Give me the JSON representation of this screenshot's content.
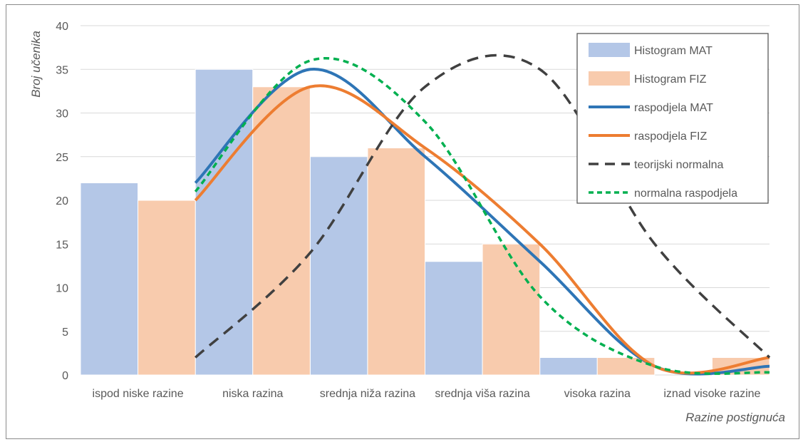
{
  "chart_data": {
    "type": "bar",
    "title": "",
    "xlabel": "Razine postignuća",
    "ylabel": "Broj učenika",
    "ylim": [
      0,
      40
    ],
    "yticks": [
      0,
      5,
      10,
      15,
      20,
      25,
      30,
      35,
      40
    ],
    "categories": [
      "ispod niske razine",
      "niska razina",
      "srednja niža razina",
      "srednja viša razina",
      "visoka razina",
      "iznad visoke razine"
    ],
    "grid": "horizontal",
    "legend_position": "top-right",
    "series": [
      {
        "name": "Histogram MAT",
        "kind": "bar",
        "color": "#b4c7e7",
        "values": [
          22,
          35,
          25,
          13,
          2,
          0
        ]
      },
      {
        "name": "Histogram FIZ",
        "kind": "bar",
        "color": "#f8cbad",
        "values": [
          20,
          33,
          26,
          15,
          2,
          2
        ]
      },
      {
        "name": "raspodjela MAT",
        "kind": "line",
        "style": "solid",
        "color": "#2e75b6",
        "values": [
          22,
          35,
          25,
          13,
          1,
          1
        ]
      },
      {
        "name": "raspodjela FIZ",
        "kind": "line",
        "style": "solid",
        "color": "#ed7d31",
        "values": [
          20,
          33,
          26,
          15,
          1,
          2
        ]
      },
      {
        "name": "teorijski normalna",
        "kind": "line",
        "style": "dashed",
        "color": "#404040",
        "values": [
          2,
          14,
          33,
          35,
          15,
          2
        ]
      },
      {
        "name": "normalna raspodjela",
        "kind": "line",
        "style": "dotted",
        "color": "#00b050",
        "values": [
          21,
          36,
          29,
          9,
          1,
          0.3
        ]
      }
    ]
  }
}
